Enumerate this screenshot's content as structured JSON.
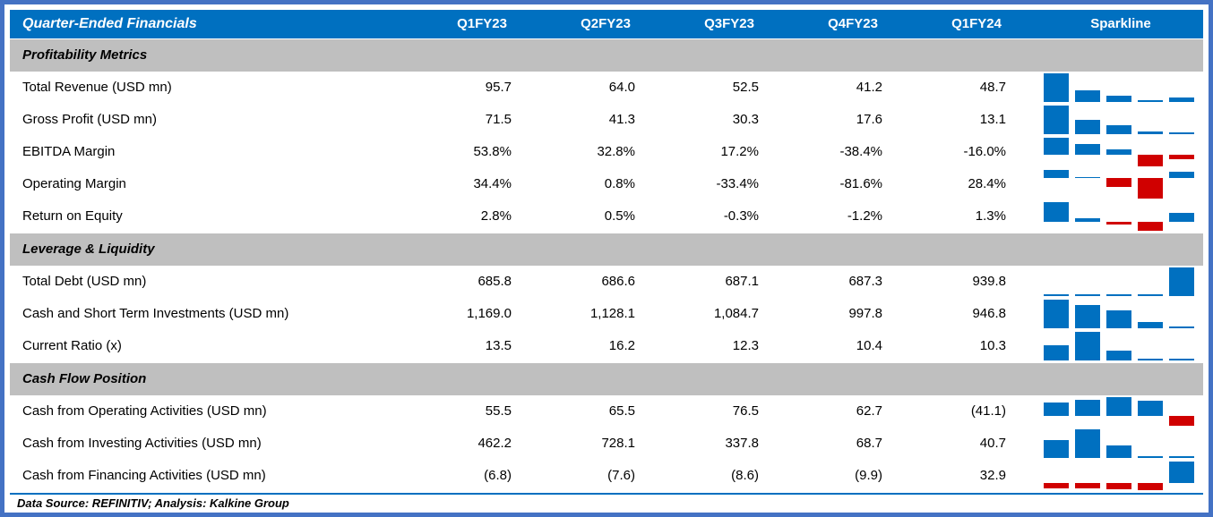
{
  "table": {
    "title": "Quarter-Ended Financials",
    "columns": [
      "Q1FY23",
      "Q2FY23",
      "Q3FY23",
      "Q4FY23",
      "Q1FY24"
    ],
    "sparkline_label": "Sparkline",
    "sections": [
      {
        "name": "Profitability Metrics",
        "rows": [
          {
            "label": "Total Revenue (USD mn)",
            "display": [
              "95.7",
              "64.0",
              "52.5",
              "41.2",
              "48.7"
            ],
            "values": [
              95.7,
              64.0,
              52.5,
              41.2,
              48.7
            ]
          },
          {
            "label": "Gross Profit (USD mn)",
            "display": [
              "71.5",
              "41.3",
              "30.3",
              "17.6",
              "13.1"
            ],
            "values": [
              71.5,
              41.3,
              30.3,
              17.6,
              13.1
            ]
          },
          {
            "label": "EBITDA Margin",
            "display": [
              "53.8%",
              "32.8%",
              "17.2%",
              "-38.4%",
              "-16.0%"
            ],
            "values": [
              53.8,
              32.8,
              17.2,
              -38.4,
              -16.0
            ]
          },
          {
            "label": "Operating Margin",
            "display": [
              "34.4%",
              "0.8%",
              "-33.4%",
              "-81.6%",
              "28.4%"
            ],
            "values": [
              34.4,
              0.8,
              -33.4,
              -81.6,
              28.4
            ]
          },
          {
            "label": "Return on Equity",
            "display": [
              "2.8%",
              "0.5%",
              "-0.3%",
              "-1.2%",
              "1.3%"
            ],
            "values": [
              2.8,
              0.5,
              -0.3,
              -1.2,
              1.3
            ]
          }
        ]
      },
      {
        "name": "Leverage & Liquidity",
        "rows": [
          {
            "label": "Total Debt (USD mn)",
            "display": [
              "685.8",
              "686.6",
              "687.1",
              "687.3",
              "939.8"
            ],
            "values": [
              685.8,
              686.6,
              687.1,
              687.3,
              939.8
            ]
          },
          {
            "label": "Cash and Short Term Investments (USD mn)",
            "display": [
              "1,169.0",
              "1,128.1",
              "1,084.7",
              "997.8",
              "946.8"
            ],
            "values": [
              1169.0,
              1128.1,
              1084.7,
              997.8,
              946.8
            ]
          },
          {
            "label": "Current Ratio (x)",
            "display": [
              "13.5",
              "16.2",
              "12.3",
              "10.4",
              "10.3"
            ],
            "values": [
              13.5,
              16.2,
              12.3,
              10.4,
              10.3
            ]
          }
        ]
      },
      {
        "name": "Cash Flow Position",
        "rows": [
          {
            "label": "Cash from Operating Activities (USD mn)",
            "display": [
              "55.5",
              "65.5",
              "76.5",
              "62.7",
              "(41.1)"
            ],
            "values": [
              55.5,
              65.5,
              76.5,
              62.7,
              -41.1
            ]
          },
          {
            "label": "Cash from Investing Activities (USD mn)",
            "display": [
              "462.2",
              "728.1",
              "337.8",
              "68.7",
              "40.7"
            ],
            "values": [
              462.2,
              728.1,
              337.8,
              68.7,
              40.7
            ]
          },
          {
            "label": "Cash from Financing Activities (USD mn)",
            "display": [
              "(6.8)",
              "(7.6)",
              "(8.6)",
              "(9.9)",
              "32.9"
            ],
            "values": [
              -6.8,
              -7.6,
              -8.6,
              -9.9,
              32.9
            ]
          }
        ]
      }
    ],
    "footer": "Data Source: REFINITIV; Analysis: Kalkine Group"
  },
  "colors": {
    "header_bg": "#0070C0",
    "header_text": "#FFFFFF",
    "section_bg": "#BFBFBF",
    "bar_positive": "#0070C0",
    "bar_negative": "#D00000",
    "outer_border": "#4472C4",
    "footer_rule": "#0070C0"
  },
  "chart_data": {
    "type": "table",
    "title": "Quarter-Ended Financials",
    "columns": [
      "Q1FY23",
      "Q2FY23",
      "Q3FY23",
      "Q4FY23",
      "Q1FY24",
      "Sparkline"
    ],
    "sparkline_spec": {
      "type": "bar",
      "positive_color": "#0070C0",
      "negative_color": "#D00000",
      "axis_scaling": "per-row automatic (min..max); negatives plotted below zero line in red"
    },
    "rows": [
      {
        "section": "Profitability Metrics",
        "label": "Total Revenue (USD mn)",
        "values": [
          95.7,
          64.0,
          52.5,
          41.2,
          48.7
        ]
      },
      {
        "section": "Profitability Metrics",
        "label": "Gross Profit (USD mn)",
        "values": [
          71.5,
          41.3,
          30.3,
          17.6,
          13.1
        ]
      },
      {
        "section": "Profitability Metrics",
        "label": "EBITDA Margin",
        "values": [
          53.8,
          32.8,
          17.2,
          -38.4,
          -16.0
        ],
        "unit": "%"
      },
      {
        "section": "Profitability Metrics",
        "label": "Operating Margin",
        "values": [
          34.4,
          0.8,
          -33.4,
          -81.6,
          28.4
        ],
        "unit": "%"
      },
      {
        "section": "Profitability Metrics",
        "label": "Return on Equity",
        "values": [
          2.8,
          0.5,
          -0.3,
          -1.2,
          1.3
        ],
        "unit": "%"
      },
      {
        "section": "Leverage & Liquidity",
        "label": "Total Debt (USD mn)",
        "values": [
          685.8,
          686.6,
          687.1,
          687.3,
          939.8
        ]
      },
      {
        "section": "Leverage & Liquidity",
        "label": "Cash and Short Term Investments (USD mn)",
        "values": [
          1169.0,
          1128.1,
          1084.7,
          997.8,
          946.8
        ]
      },
      {
        "section": "Leverage & Liquidity",
        "label": "Current Ratio (x)",
        "values": [
          13.5,
          16.2,
          12.3,
          10.4,
          10.3
        ]
      },
      {
        "section": "Cash Flow Position",
        "label": "Cash from Operating Activities (USD mn)",
        "values": [
          55.5,
          65.5,
          76.5,
          62.7,
          -41.1
        ]
      },
      {
        "section": "Cash Flow Position",
        "label": "Cash from Investing Activities (USD mn)",
        "values": [
          462.2,
          728.1,
          337.8,
          68.7,
          40.7
        ]
      },
      {
        "section": "Cash Flow Position",
        "label": "Cash from Financing Activities (USD mn)",
        "values": [
          -6.8,
          -7.6,
          -8.6,
          -9.9,
          32.9
        ]
      }
    ],
    "footnote": "Data Source: REFINITIV; Analysis: Kalkine Group"
  }
}
